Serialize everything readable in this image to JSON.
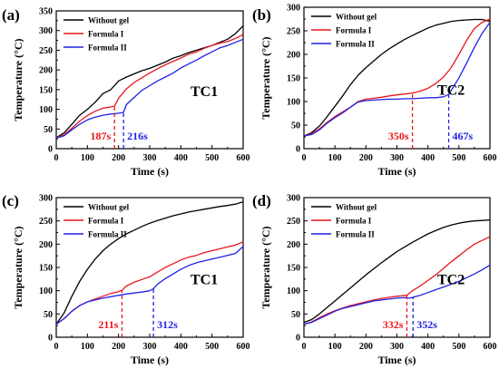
{
  "colors": {
    "without_gel": "#000000",
    "formula_1": "#e8161b",
    "formula_2": "#1f21e6",
    "axis": "#000000"
  },
  "chart_data": [
    {
      "panel_label": "(a)",
      "type": "line",
      "xlabel": "Time (s)",
      "ylabel": "Temperature (°C)",
      "xlim": [
        0,
        600
      ],
      "ylim": [
        0,
        350
      ],
      "xticks": [
        "0",
        "100",
        "200",
        "300",
        "400",
        "500",
        "600"
      ],
      "yticks": [
        "0",
        "50",
        "100",
        "150",
        "200",
        "250",
        "300",
        "350"
      ],
      "annotation": "TC1",
      "legend_position": "top-left",
      "series": [
        {
          "name": "Without gel",
          "color_key": "without_gel",
          "x": [
            0,
            25,
            50,
            75,
            100,
            125,
            150,
            175,
            200,
            225,
            250,
            275,
            300,
            325,
            350,
            375,
            400,
            425,
            450,
            475,
            500,
            525,
            550,
            575,
            600
          ],
          "y": [
            28,
            40,
            62,
            85,
            100,
            118,
            140,
            150,
            172,
            182,
            190,
            198,
            204,
            212,
            220,
            230,
            236,
            244,
            250,
            256,
            262,
            270,
            278,
            292,
            312
          ]
        },
        {
          "name": "Formula I",
          "color_key": "formula_1",
          "x": [
            0,
            25,
            50,
            75,
            100,
            125,
            150,
            175,
            187,
            200,
            225,
            250,
            275,
            300,
            325,
            350,
            375,
            400,
            425,
            450,
            475,
            500,
            525,
            550,
            575,
            600
          ],
          "y": [
            28,
            35,
            52,
            70,
            84,
            95,
            103,
            106,
            108,
            128,
            152,
            168,
            180,
            192,
            203,
            213,
            222,
            230,
            240,
            246,
            255,
            262,
            268,
            272,
            280,
            290
          ]
        },
        {
          "name": "Formula II",
          "color_key": "formula_2",
          "x": [
            0,
            25,
            50,
            75,
            100,
            125,
            150,
            175,
            200,
            216,
            225,
            250,
            275,
            300,
            325,
            350,
            375,
            400,
            425,
            450,
            475,
            500,
            525,
            550,
            575,
            600
          ],
          "y": [
            27,
            33,
            48,
            62,
            73,
            80,
            85,
            88,
            90,
            92,
            112,
            130,
            148,
            160,
            172,
            182,
            192,
            205,
            215,
            225,
            236,
            246,
            256,
            262,
            270,
            278
          ]
        }
      ],
      "markers": [
        {
          "x": 187,
          "y": 108,
          "label": "187s",
          "color_key": "formula_1"
        },
        {
          "x": 216,
          "y": 92,
          "label": "216s",
          "color_key": "formula_2"
        }
      ]
    },
    {
      "panel_label": "(b)",
      "type": "line",
      "xlabel": "Time (s)",
      "ylabel": "Temperature (°C)",
      "xlim": [
        0,
        600
      ],
      "ylim": [
        0,
        300
      ],
      "xticks": [
        "0",
        "100",
        "200",
        "300",
        "400",
        "500",
        "600"
      ],
      "yticks": [
        "0",
        "50",
        "100",
        "150",
        "200",
        "250",
        "300"
      ],
      "annotation": "TC2",
      "legend_position": "top-left",
      "series": [
        {
          "name": "Without gel",
          "color_key": "without_gel",
          "x": [
            0,
            25,
            50,
            75,
            100,
            125,
            150,
            175,
            200,
            225,
            250,
            275,
            300,
            325,
            350,
            375,
            400,
            425,
            450,
            475,
            500,
            525,
            550,
            575,
            600
          ],
          "y": [
            27,
            34,
            48,
            68,
            90,
            112,
            136,
            156,
            172,
            186,
            200,
            212,
            222,
            232,
            240,
            248,
            256,
            262,
            266,
            270,
            272,
            273,
            274,
            274,
            270
          ]
        },
        {
          "name": "Formula I",
          "color_key": "formula_1",
          "x": [
            0,
            25,
            50,
            75,
            100,
            125,
            150,
            175,
            200,
            225,
            250,
            275,
            300,
            325,
            350,
            375,
            400,
            425,
            450,
            475,
            500,
            525,
            550,
            575,
            600
          ],
          "y": [
            27,
            32,
            42,
            56,
            68,
            78,
            88,
            100,
            105,
            107,
            109,
            112,
            114,
            116,
            118,
            122,
            128,
            138,
            152,
            172,
            200,
            230,
            255,
            268,
            275
          ]
        },
        {
          "name": "Formula II",
          "color_key": "formula_2",
          "x": [
            0,
            25,
            50,
            75,
            100,
            125,
            150,
            175,
            200,
            225,
            250,
            275,
            300,
            325,
            350,
            375,
            400,
            425,
            450,
            467,
            500,
            525,
            550,
            575,
            600
          ],
          "y": [
            27,
            30,
            40,
            54,
            66,
            76,
            88,
            99,
            102,
            103,
            104,
            105,
            105,
            106,
            106,
            107,
            108,
            108,
            110,
            115,
            150,
            182,
            215,
            245,
            268
          ]
        }
      ],
      "markers": [
        {
          "x": 350,
          "y": 118,
          "label": "350s",
          "color_key": "formula_1"
        },
        {
          "x": 467,
          "y": 115,
          "label": "467s",
          "color_key": "formula_2"
        }
      ]
    },
    {
      "panel_label": "(c)",
      "type": "line",
      "xlabel": "Time (s)",
      "ylabel": "Temperature (°C)",
      "xlim": [
        0,
        600
      ],
      "ylim": [
        0,
        300
      ],
      "xticks": [
        "0",
        "100",
        "200",
        "300",
        "400",
        "500",
        "600"
      ],
      "yticks": [
        "0",
        "50",
        "100",
        "150",
        "200",
        "250",
        "300"
      ],
      "annotation": "TC1",
      "legend_position": "top-left",
      "series": [
        {
          "name": "Without gel",
          "color_key": "without_gel",
          "x": [
            0,
            25,
            50,
            75,
            100,
            125,
            150,
            175,
            200,
            225,
            250,
            275,
            300,
            325,
            350,
            375,
            400,
            425,
            450,
            475,
            500,
            525,
            550,
            575,
            600
          ],
          "y": [
            28,
            52,
            88,
            120,
            146,
            168,
            186,
            200,
            212,
            222,
            230,
            238,
            245,
            251,
            256,
            261,
            265,
            269,
            272,
            275,
            278,
            281,
            283,
            286,
            291
          ]
        },
        {
          "name": "Formula I",
          "color_key": "formula_1",
          "x": [
            0,
            25,
            50,
            75,
            100,
            125,
            150,
            175,
            200,
            211,
            225,
            250,
            275,
            300,
            325,
            350,
            375,
            400,
            425,
            450,
            475,
            500,
            525,
            550,
            575,
            600
          ],
          "y": [
            28,
            40,
            56,
            68,
            76,
            82,
            88,
            94,
            98,
            101,
            110,
            118,
            124,
            130,
            140,
            150,
            158,
            166,
            172,
            176,
            182,
            186,
            190,
            194,
            198,
            205
          ]
        },
        {
          "name": "Formula II",
          "color_key": "formula_2",
          "x": [
            0,
            25,
            50,
            75,
            100,
            125,
            150,
            175,
            200,
            225,
            250,
            275,
            300,
            312,
            325,
            350,
            375,
            400,
            425,
            450,
            475,
            500,
            525,
            550,
            575,
            600
          ],
          "y": [
            28,
            40,
            56,
            68,
            76,
            80,
            84,
            87,
            90,
            93,
            95,
            97,
            100,
            104,
            114,
            126,
            136,
            146,
            154,
            160,
            164,
            168,
            172,
            176,
            180,
            195
          ]
        }
      ],
      "markers": [
        {
          "x": 211,
          "y": 101,
          "label": "211s",
          "color_key": "formula_1"
        },
        {
          "x": 312,
          "y": 104,
          "label": "312s",
          "color_key": "formula_2"
        }
      ]
    },
    {
      "panel_label": "(d)",
      "type": "line",
      "xlabel": "Time (s)",
      "ylabel": "Temperature (°C)",
      "xlim": [
        0,
        600
      ],
      "ylim": [
        0,
        300
      ],
      "xticks": [
        "0",
        "100",
        "200",
        "300",
        "400",
        "500",
        "600"
      ],
      "yticks": [
        "0",
        "50",
        "100",
        "150",
        "200",
        "250",
        "300"
      ],
      "annotation": "TC2",
      "legend_position": "top-left",
      "series": [
        {
          "name": "Without gel",
          "color_key": "without_gel",
          "x": [
            0,
            25,
            50,
            75,
            100,
            125,
            150,
            175,
            200,
            225,
            250,
            275,
            300,
            325,
            350,
            375,
            400,
            425,
            450,
            475,
            500,
            525,
            550,
            575,
            600
          ],
          "y": [
            32,
            38,
            50,
            64,
            78,
            92,
            106,
            120,
            134,
            147,
            160,
            172,
            184,
            194,
            204,
            213,
            222,
            229,
            236,
            241,
            245,
            248,
            250,
            251,
            252
          ]
        },
        {
          "name": "Formula I",
          "color_key": "formula_1",
          "x": [
            0,
            25,
            50,
            75,
            100,
            125,
            150,
            175,
            200,
            225,
            250,
            275,
            300,
            332,
            350,
            375,
            400,
            425,
            450,
            475,
            500,
            525,
            550,
            575,
            600
          ],
          "y": [
            28,
            33,
            42,
            50,
            57,
            63,
            68,
            72,
            76,
            80,
            83,
            86,
            88,
            90,
            100,
            110,
            122,
            134,
            148,
            162,
            175,
            188,
            200,
            208,
            216
          ]
        },
        {
          "name": "Formula II",
          "color_key": "formula_2",
          "x": [
            0,
            25,
            50,
            75,
            100,
            125,
            150,
            175,
            200,
            225,
            250,
            275,
            300,
            325,
            340,
            352,
            375,
            400,
            425,
            450,
            475,
            500,
            525,
            550,
            575,
            600
          ],
          "y": [
            28,
            32,
            40,
            48,
            56,
            62,
            66,
            70,
            74,
            78,
            80,
            82,
            84,
            85,
            84,
            86,
            90,
            96,
            102,
            108,
            114,
            120,
            128,
            136,
            145,
            155
          ]
        }
      ],
      "markers": [
        {
          "x": 332,
          "y": 90,
          "label": "332s",
          "color_key": "formula_1"
        },
        {
          "x": 352,
          "y": 86,
          "label": "352s",
          "color_key": "formula_2"
        }
      ]
    }
  ]
}
